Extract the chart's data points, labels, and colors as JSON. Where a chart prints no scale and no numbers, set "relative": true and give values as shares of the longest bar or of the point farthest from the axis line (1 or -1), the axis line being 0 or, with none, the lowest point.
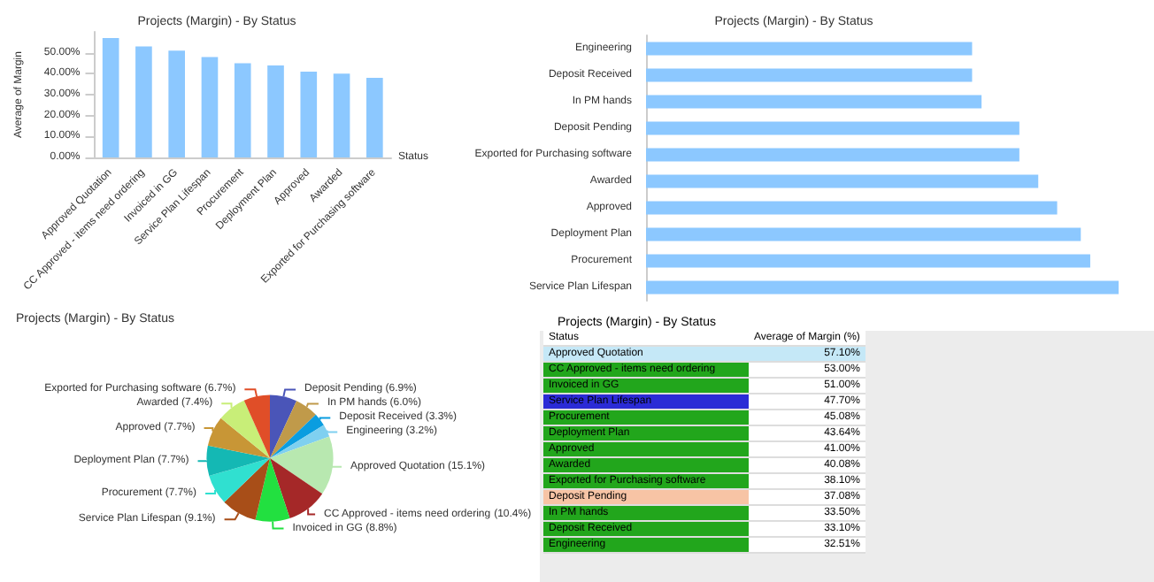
{
  "chart_data": [
    {
      "type": "bar",
      "title": "Projects (Margin) - By Status",
      "xlabel": "Status",
      "ylabel": "Average of Margin",
      "categories": [
        "Approved Quotation",
        "CC Approved - items need ordering",
        "Invoiced in GG",
        "Service Plan Lifespan",
        "Procurement",
        "Deployment Plan",
        "Approved",
        "Awarded",
        "Exported for Purchasing software"
      ],
      "values": [
        57,
        53,
        51,
        48,
        45,
        44,
        41,
        40,
        38
      ],
      "color": "#8cc8ff",
      "ylim": [
        0,
        60
      ],
      "yticks": [
        {
          "value": 0,
          "label": "0.00%"
        },
        {
          "value": 10,
          "label": "10.00%"
        },
        {
          "value": 20,
          "label": "20.00%"
        },
        {
          "value": 30,
          "label": "30.00%"
        },
        {
          "value": 40,
          "label": "40.00%"
        },
        {
          "value": 50,
          "label": "50.00%"
        }
      ]
    },
    {
      "type": "bar",
      "orientation": "horizontal",
      "relative": true,
      "title": "Projects (Margin) - By Status",
      "categories": [
        "Engineering",
        "Deposit Received",
        "In PM hands",
        "Deposit Pending",
        "Exported for Purchasing software",
        "Awarded",
        "Approved",
        "Deployment Plan",
        "Procurement",
        "Service Plan Lifespan"
      ],
      "values": [
        0.69,
        0.69,
        0.71,
        0.79,
        0.79,
        0.83,
        0.87,
        0.92,
        0.94,
        1
      ],
      "color": "#8cc8ff"
    },
    {
      "type": "pie",
      "title": "Projects (Margin) - By Status",
      "categories": [
        "Deposit Pending",
        "In PM hands",
        "Deposit Received",
        "Engineering",
        "Approved Quotation",
        "CC Approved - items need ordering",
        "Invoiced in GG",
        "Service Plan Lifespan",
        "Procurement",
        "Deployment Plan",
        "Approved",
        "Awarded",
        "Exported for Purchasing software"
      ],
      "values": [
        6.9,
        6.0,
        3.3,
        3.2,
        15.1,
        10.4,
        8.8,
        9.1,
        7.7,
        7.7,
        7.7,
        7.4,
        6.7
      ],
      "value_labels": [
        "(6.9%)",
        "(6.0%)",
        "(3.3%)",
        "(3.2%)",
        "(15.1%)",
        "(10.4%)",
        "(8.8%)",
        "(9.1%)",
        "(7.7%)",
        "(7.7%)",
        "(7.7%)",
        "(7.4%)",
        "(6.7%)"
      ],
      "colors": [
        "#4a55b8",
        "#c09a4a",
        "#0a9de0",
        "#7fd0f0",
        "#b8e8b0",
        "#a52828",
        "#22e040",
        "#a84e18",
        "#30e0d0",
        "#14b8b4",
        "#c89636",
        "#c8ee78",
        "#e04e28"
      ]
    },
    {
      "type": "other",
      "title": "Projects (Margin) - By Status",
      "xlabel": "Status",
      "ylabel": "Average of Margin (%)",
      "categories": [
        "Approved Quotation",
        "CC Approved - items need ordering",
        "Invoiced in GG",
        "Service Plan Lifespan",
        "Procurement",
        "Deployment Plan",
        "Approved",
        "Awarded",
        "Exported for Purchasing software",
        "Deposit Pending",
        "In PM hands",
        "Deposit Received",
        "Engineering"
      ],
      "value_labels": [
        "57.10%",
        "53.00%",
        "51.00%",
        "47.70%",
        "45.08%",
        "43.64%",
        "41.00%",
        "40.08%",
        "38.10%",
        "37.08%",
        "33.50%",
        "33.10%",
        "32.51%"
      ],
      "colors": [
        "#c5e8f7",
        "#22a61c",
        "#22a61c",
        "#2b2bd6",
        "#22a61c",
        "#22a61c",
        "#22a61c",
        "#22a61c",
        "#22a61c",
        "#f7c4a5",
        "#22a61c",
        "#22a61c",
        "#22a61c"
      ]
    }
  ]
}
